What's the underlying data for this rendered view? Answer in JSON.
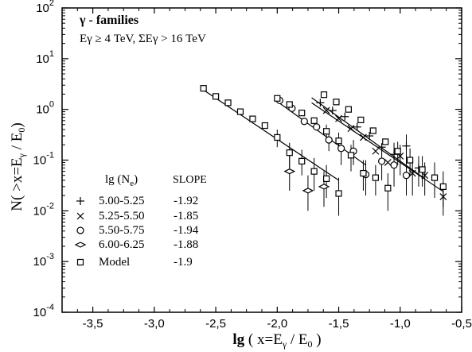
{
  "chart_data": {
    "type": "scatter",
    "title_lines": [
      "γ - families",
      "Eγ ≥ 4 TeV, ΣEγ > 16 TeV"
    ],
    "xlabel_parts": [
      "lg",
      " ( x=E",
      "γ",
      " / E",
      "0",
      " )"
    ],
    "ylabel_parts": [
      "N( >x=E",
      "γ",
      " / E",
      "0",
      ")"
    ],
    "x_scale": "linear",
    "y_scale": "log",
    "xlim": [
      -3.75,
      -0.5
    ],
    "ylim": [
      0.0001,
      100
    ],
    "x_ticks": [
      -3.5,
      -3.0,
      -2.5,
      -2.0,
      -1.5,
      -1.0,
      -0.5
    ],
    "x_tick_labels": [
      "-3,5",
      "-3,0",
      "-2,5",
      "-2,0",
      "-1,5",
      "-1,0",
      "-0,5"
    ],
    "y_ticks": [
      0.0001,
      0.001,
      0.01,
      0.1,
      1,
      10,
      100
    ],
    "y_tick_labels": [
      {
        "base": "10",
        "exp": "-4"
      },
      {
        "base": "10",
        "exp": "-3"
      },
      {
        "base": "10",
        "exp": "-2"
      },
      {
        "base": "10",
        "exp": "-1"
      },
      {
        "base": "10",
        "exp": "0"
      },
      {
        "base": "10",
        "exp": "1"
      },
      {
        "base": "10",
        "exp": "2"
      }
    ],
    "legend": {
      "header_label_parts": [
        "lg (N",
        "e",
        ")"
      ],
      "header_slope": "SLOPE",
      "position": "lower-left",
      "entries": [
        {
          "marker": "plus",
          "label": "5.00-5.25",
          "slope": "-1.92"
        },
        {
          "marker": "cross",
          "label": "5.25-5.50",
          "slope": "-1.85"
        },
        {
          "marker": "circle",
          "label": "5.50-5.75",
          "slope": "-1.94"
        },
        {
          "marker": "diamond",
          "label": "6.00-6.25",
          "slope": "-1.88"
        },
        {
          "marker": "square",
          "label": "Model",
          "slope": "-1.9"
        }
      ]
    },
    "series": [
      {
        "name": "5.00-5.25",
        "marker": "plus",
        "points": [
          [
            -1.65,
            1.35,
            null,
            null
          ],
          [
            -1.55,
            0.95,
            null,
            null
          ],
          [
            -1.45,
            0.72,
            null,
            null
          ],
          [
            -1.35,
            0.45,
            null,
            null
          ],
          [
            -1.25,
            0.3,
            null,
            null
          ],
          [
            -1.15,
            0.18,
            null,
            null
          ],
          [
            -1.05,
            0.13,
            0.07,
            0.22
          ],
          [
            -0.95,
            0.19,
            0.08,
            0.32
          ],
          [
            -0.85,
            0.07,
            0.03,
            0.12
          ]
        ],
        "fit": [
          [
            -1.72,
            1.7
          ],
          [
            -0.8,
            0.043
          ]
        ]
      },
      {
        "name": "5.25-5.50",
        "marker": "cross",
        "points": [
          [
            -1.6,
            0.95,
            null,
            null
          ],
          [
            -1.5,
            0.66,
            null,
            null
          ],
          [
            -1.4,
            0.42,
            null,
            null
          ],
          [
            -1.3,
            0.28,
            null,
            null
          ],
          [
            -1.2,
            0.15,
            null,
            null
          ],
          [
            -1.1,
            0.09,
            null,
            null
          ],
          [
            -1.0,
            0.12,
            0.05,
            0.2
          ],
          [
            -0.9,
            0.055,
            0.02,
            0.1
          ],
          [
            -0.8,
            0.05,
            0.02,
            0.09
          ],
          [
            -0.65,
            0.019,
            0.008,
            0.035
          ]
        ],
        "fit": [
          [
            -1.72,
            1.35
          ],
          [
            -0.65,
            0.024
          ]
        ]
      },
      {
        "name": "5.50-5.75",
        "marker": "circle",
        "points": [
          [
            -1.98,
            1.5,
            null,
            null
          ],
          [
            -1.88,
            1.05,
            null,
            null
          ],
          [
            -1.78,
            0.58,
            null,
            null
          ],
          [
            -1.68,
            0.45,
            null,
            null
          ],
          [
            -1.58,
            0.25,
            0.15,
            0.38
          ],
          [
            -1.48,
            0.17,
            0.08,
            0.25
          ],
          [
            -1.38,
            0.15,
            0.08,
            0.25
          ],
          [
            -1.28,
            0.052,
            0.02,
            0.1
          ],
          [
            -1.15,
            0.095,
            0.04,
            0.17
          ],
          [
            -1.05,
            0.08,
            0.03,
            0.15
          ],
          [
            -0.95,
            0.05,
            0.02,
            0.1
          ]
        ],
        "fit": [
          [
            -2.02,
            1.55
          ],
          [
            -1.28,
            0.08
          ]
        ]
      },
      {
        "name": "6.00-6.25",
        "marker": "diamond",
        "points": [
          [
            -1.9,
            0.06,
            0.025,
            0.12
          ],
          [
            -1.75,
            0.025,
            0.01,
            0.05
          ],
          [
            -1.62,
            0.03,
            0.012,
            0.06
          ]
        ],
        "fit": null
      },
      {
        "name": "Model",
        "marker": "square",
        "points": [
          [
            -2.6,
            2.6,
            null,
            null
          ],
          [
            -2.5,
            1.8,
            null,
            null
          ],
          [
            -2.4,
            1.35,
            null,
            null
          ],
          [
            -2.3,
            0.9,
            null,
            null
          ],
          [
            -2.2,
            0.65,
            null,
            null
          ],
          [
            -2.1,
            0.48,
            null,
            null
          ],
          [
            -2.0,
            0.28,
            0.18,
            0.4
          ],
          [
            -1.9,
            0.14,
            0.07,
            0.22
          ],
          [
            -1.8,
            0.095,
            0.05,
            0.16
          ],
          [
            -1.7,
            0.06,
            0.025,
            0.11
          ],
          [
            -1.6,
            0.043,
            0.018,
            0.08
          ],
          [
            -1.5,
            0.022,
            0.008,
            0.045
          ],
          [
            -2.0,
            1.65,
            null,
            null
          ],
          [
            -1.9,
            1.25,
            null,
            null
          ],
          [
            -1.8,
            0.85,
            null,
            null
          ],
          [
            -1.7,
            0.6,
            null,
            null
          ],
          [
            -1.6,
            0.37,
            0.25,
            0.5
          ],
          [
            -1.5,
            0.24,
            0.15,
            0.35
          ],
          [
            -1.4,
            0.125,
            0.06,
            0.2
          ],
          [
            -1.3,
            0.055,
            0.025,
            0.1
          ],
          [
            -1.2,
            0.045,
            0.02,
            0.08
          ],
          [
            -1.1,
            0.028,
            0.01,
            0.055
          ],
          [
            -1.62,
            1.95,
            null,
            null
          ],
          [
            -1.52,
            1.4,
            null,
            null
          ],
          [
            -1.42,
            1.0,
            null,
            null
          ],
          [
            -1.32,
            0.62,
            null,
            null
          ],
          [
            -1.22,
            0.38,
            null,
            null
          ],
          [
            -1.12,
            0.23,
            null,
            null
          ],
          [
            -1.02,
            0.15,
            0.08,
            0.23
          ],
          [
            -0.92,
            0.1,
            0.05,
            0.17
          ],
          [
            -0.82,
            0.065,
            0.03,
            0.12
          ],
          [
            -0.72,
            0.045,
            0.018,
            0.09
          ],
          [
            -0.65,
            0.03,
            0.012,
            0.06
          ]
        ],
        "fit": null
      }
    ],
    "fit_lines": [
      [
        [
          -2.62,
          2.6
        ],
        [
          -1.5,
          0.04
        ]
      ]
    ]
  }
}
